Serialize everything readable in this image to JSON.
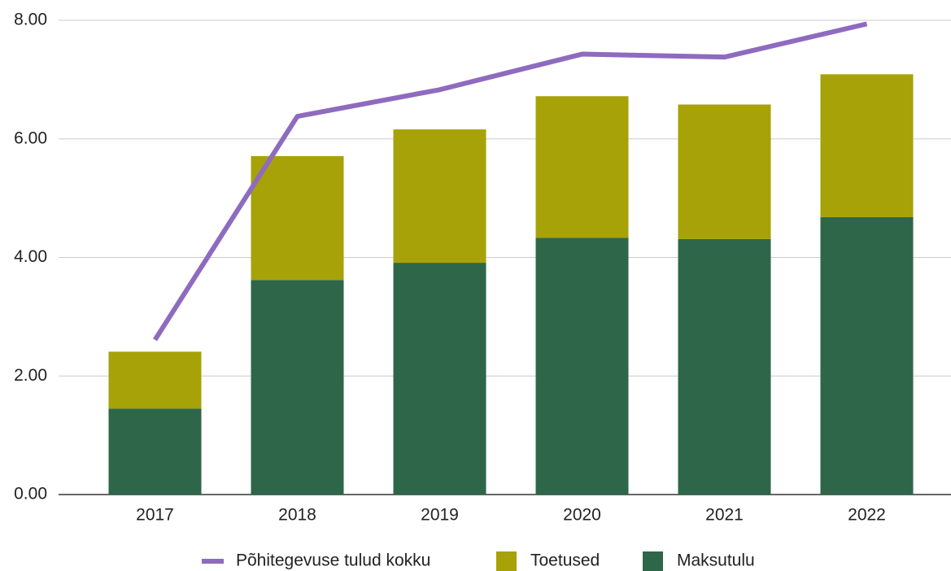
{
  "chart_data": {
    "type": "bar",
    "categories": [
      "2017",
      "2018",
      "2019",
      "2020",
      "2021",
      "2022"
    ],
    "series": [
      {
        "name": "Põhitegevuse tulud kokku",
        "type": "line",
        "color": "#8e6bbf",
        "values": [
          2.61,
          6.38,
          6.83,
          7.43,
          7.38,
          7.94
        ]
      },
      {
        "name": "Toetused",
        "type": "bar",
        "color": "#a6a208",
        "values": [
          0.96,
          2.09,
          2.25,
          2.39,
          2.27,
          2.41
        ]
      },
      {
        "name": "Maksutulu",
        "type": "bar",
        "color": "#2e664a",
        "values": [
          1.45,
          3.62,
          3.91,
          4.33,
          4.31,
          4.68
        ]
      }
    ],
    "stacked": true,
    "ylim": [
      0,
      8
    ],
    "yticks": [
      {
        "value": 0,
        "label": "0.00"
      },
      {
        "value": 2,
        "label": "2.00"
      },
      {
        "value": 4,
        "label": "4.00"
      },
      {
        "value": 6,
        "label": "6.00"
      },
      {
        "value": 8,
        "label": "8.00"
      }
    ],
    "grid": true,
    "legend": "bottom"
  }
}
